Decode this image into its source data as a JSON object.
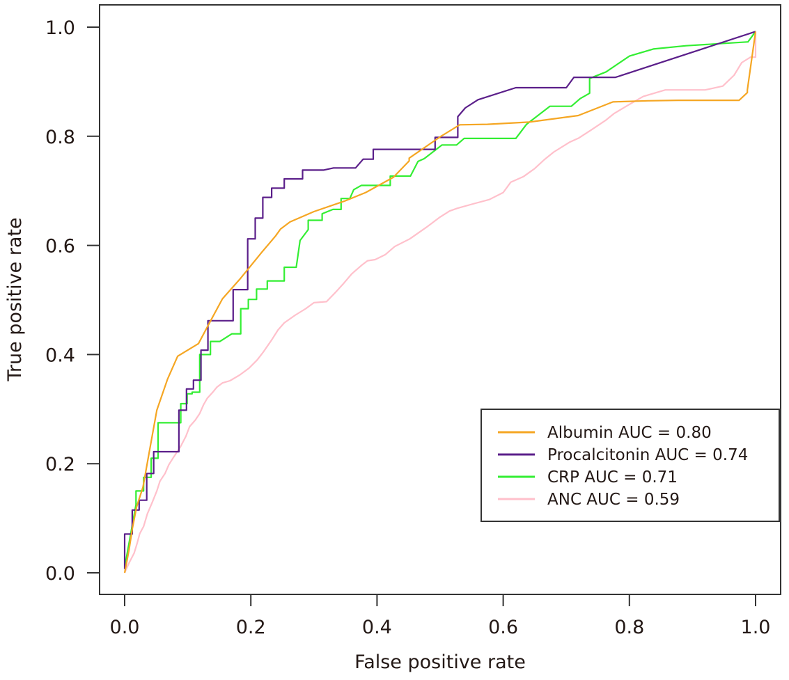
{
  "chart_data": {
    "type": "line",
    "title": "",
    "xlabel": "False positive rate",
    "ylabel": "True positive rate",
    "xlim": [
      0.0,
      1.0
    ],
    "ylim": [
      0.0,
      1.0
    ],
    "xticks": [
      "0.0",
      "0.2",
      "0.4",
      "0.6",
      "0.8",
      "1.0"
    ],
    "yticks": [
      "0.0",
      "0.2",
      "0.4",
      "0.6",
      "0.8",
      "1.0"
    ],
    "grid": false,
    "legend_position": "bottom-right",
    "series": [
      {
        "name": "Albumin AUC = 0.80",
        "color": "#F5A623",
        "x": [
          0.0,
          0.007,
          0.012,
          0.019,
          0.029,
          0.039,
          0.051,
          0.068,
          0.084,
          0.117,
          0.134,
          0.155,
          0.184,
          0.217,
          0.239,
          0.247,
          0.262,
          0.3,
          0.348,
          0.382,
          0.426,
          0.451,
          0.451,
          0.5,
          0.531,
          0.575,
          0.641,
          0.719,
          0.774,
          0.829,
          0.877,
          0.974,
          0.987,
          0.987,
          1.0
        ],
        "y": [
          0.0,
          0.042,
          0.08,
          0.121,
          0.157,
          0.221,
          0.298,
          0.355,
          0.397,
          0.42,
          0.457,
          0.502,
          0.54,
          0.587,
          0.617,
          0.63,
          0.643,
          0.662,
          0.681,
          0.697,
          0.725,
          0.755,
          0.76,
          0.799,
          0.821,
          0.822,
          0.826,
          0.838,
          0.863,
          0.865,
          0.866,
          0.866,
          0.88,
          0.885,
          0.992
        ]
      },
      {
        "name": "Procalcitonin AUC = 0.74",
        "color": "#5B1F8A",
        "x": [
          0.0,
          0.0,
          0.012,
          0.012,
          0.023,
          0.023,
          0.035,
          0.035,
          0.046,
          0.046,
          0.086,
          0.086,
          0.098,
          0.098,
          0.109,
          0.109,
          0.121,
          0.121,
          0.132,
          0.132,
          0.172,
          0.172,
          0.195,
          0.195,
          0.207,
          0.207,
          0.219,
          0.219,
          0.233,
          0.233,
          0.253,
          0.253,
          0.282,
          0.282,
          0.315,
          0.331,
          0.366,
          0.378,
          0.394,
          0.394,
          0.492,
          0.492,
          0.528,
          0.528,
          0.54,
          0.56,
          0.62,
          0.7,
          0.712,
          0.733,
          0.778,
          1.0
        ],
        "y": [
          0.007,
          0.071,
          0.071,
          0.115,
          0.115,
          0.133,
          0.133,
          0.182,
          0.182,
          0.222,
          0.222,
          0.298,
          0.298,
          0.337,
          0.337,
          0.353,
          0.353,
          0.408,
          0.408,
          0.462,
          0.462,
          0.519,
          0.519,
          0.612,
          0.612,
          0.65,
          0.65,
          0.688,
          0.688,
          0.705,
          0.705,
          0.722,
          0.722,
          0.738,
          0.738,
          0.742,
          0.742,
          0.758,
          0.758,
          0.776,
          0.776,
          0.798,
          0.798,
          0.836,
          0.852,
          0.867,
          0.889,
          0.889,
          0.908,
          0.908,
          0.908,
          0.992
        ]
      },
      {
        "name": "CRP AUC = 0.71",
        "color": "#33EE33",
        "x": [
          0.0,
          0.018,
          0.018,
          0.03,
          0.03,
          0.042,
          0.042,
          0.053,
          0.053,
          0.089,
          0.089,
          0.099,
          0.099,
          0.107,
          0.107,
          0.119,
          0.119,
          0.136,
          0.136,
          0.151,
          0.17,
          0.184,
          0.184,
          0.196,
          0.196,
          0.209,
          0.209,
          0.226,
          0.226,
          0.253,
          0.253,
          0.272,
          0.278,
          0.291,
          0.291,
          0.313,
          0.313,
          0.33,
          0.343,
          0.343,
          0.357,
          0.363,
          0.375,
          0.421,
          0.421,
          0.453,
          0.465,
          0.475,
          0.503,
          0.526,
          0.538,
          0.557,
          0.62,
          0.637,
          0.674,
          0.708,
          0.722,
          0.737,
          0.737,
          0.763,
          0.8,
          0.838,
          0.89,
          0.988,
          1.0
        ],
        "y": [
          0.01,
          0.125,
          0.15,
          0.15,
          0.175,
          0.175,
          0.21,
          0.21,
          0.275,
          0.275,
          0.31,
          0.31,
          0.328,
          0.328,
          0.331,
          0.331,
          0.4,
          0.4,
          0.424,
          0.424,
          0.438,
          0.438,
          0.484,
          0.484,
          0.501,
          0.501,
          0.52,
          0.52,
          0.535,
          0.535,
          0.56,
          0.56,
          0.609,
          0.629,
          0.646,
          0.646,
          0.658,
          0.666,
          0.666,
          0.686,
          0.686,
          0.702,
          0.71,
          0.71,
          0.727,
          0.727,
          0.754,
          0.759,
          0.784,
          0.784,
          0.796,
          0.796,
          0.796,
          0.822,
          0.855,
          0.855,
          0.869,
          0.879,
          0.906,
          0.918,
          0.947,
          0.96,
          0.966,
          0.973,
          0.992
        ]
      },
      {
        "name": "ANC AUC = 0.59",
        "color": "#FFC0CB",
        "x": [
          0.0,
          0.007,
          0.015,
          0.02,
          0.024,
          0.03,
          0.036,
          0.044,
          0.051,
          0.056,
          0.064,
          0.07,
          0.077,
          0.088,
          0.097,
          0.103,
          0.112,
          0.119,
          0.125,
          0.131,
          0.139,
          0.146,
          0.155,
          0.167,
          0.183,
          0.197,
          0.21,
          0.22,
          0.232,
          0.243,
          0.253,
          0.27,
          0.287,
          0.3,
          0.32,
          0.335,
          0.346,
          0.36,
          0.376,
          0.385,
          0.397,
          0.413,
          0.428,
          0.452,
          0.478,
          0.5,
          0.515,
          0.527,
          0.552,
          0.578,
          0.6,
          0.612,
          0.632,
          0.65,
          0.665,
          0.68,
          0.705,
          0.72,
          0.74,
          0.762,
          0.776,
          0.798,
          0.822,
          0.857,
          0.88,
          0.92,
          0.948,
          0.966,
          0.978,
          0.992,
          1.0,
          1.0
        ],
        "y": [
          0.0,
          0.018,
          0.036,
          0.055,
          0.072,
          0.085,
          0.108,
          0.13,
          0.15,
          0.168,
          0.182,
          0.198,
          0.211,
          0.23,
          0.25,
          0.268,
          0.28,
          0.292,
          0.308,
          0.32,
          0.33,
          0.34,
          0.348,
          0.352,
          0.363,
          0.375,
          0.39,
          0.405,
          0.425,
          0.445,
          0.458,
          0.472,
          0.484,
          0.495,
          0.497,
          0.515,
          0.529,
          0.548,
          0.564,
          0.572,
          0.574,
          0.583,
          0.598,
          0.612,
          0.633,
          0.652,
          0.663,
          0.668,
          0.676,
          0.684,
          0.697,
          0.716,
          0.726,
          0.741,
          0.757,
          0.771,
          0.789,
          0.797,
          0.812,
          0.829,
          0.842,
          0.857,
          0.873,
          0.885,
          0.885,
          0.885,
          0.892,
          0.912,
          0.935,
          0.945,
          0.945,
          0.992
        ]
      }
    ]
  }
}
